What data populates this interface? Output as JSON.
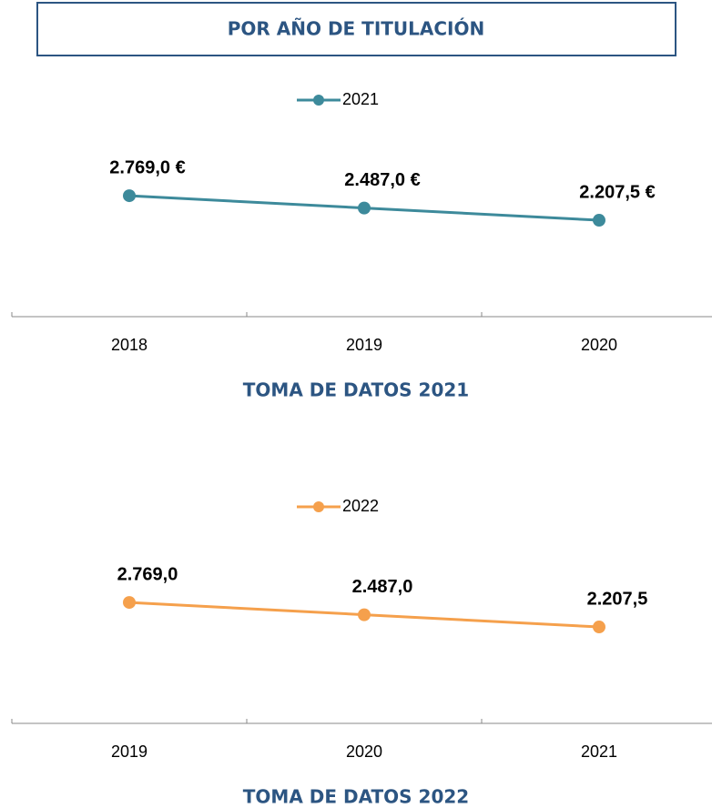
{
  "header": {
    "title": "POR AÑO DE TITULACIÓN"
  },
  "chart_data": [
    {
      "type": "line",
      "categories": [
        "2018",
        "2019",
        "2020"
      ],
      "series": [
        {
          "name": "2021",
          "color": "#3d8a9b",
          "values": [
            2769.0,
            2487.0,
            2207.5
          ],
          "value_labels": [
            "2.769,0 €",
            "2.487,0 €",
            "2.207,5 €"
          ]
        }
      ],
      "ylim": [
        0,
        6000
      ],
      "xlabel": "TOMA DE DATOS 2021"
    },
    {
      "type": "line",
      "categories": [
        "2019",
        "2020",
        "2021"
      ],
      "series": [
        {
          "name": "2022",
          "color": "#f5a04c",
          "values": [
            2769.0,
            2487.0,
            2207.5
          ],
          "value_labels": [
            "2.769,0",
            "2.487,0",
            "2.207,5"
          ]
        }
      ],
      "ylim": [
        0,
        6000
      ],
      "xlabel": "TOMA DE DATOS 2022"
    }
  ]
}
